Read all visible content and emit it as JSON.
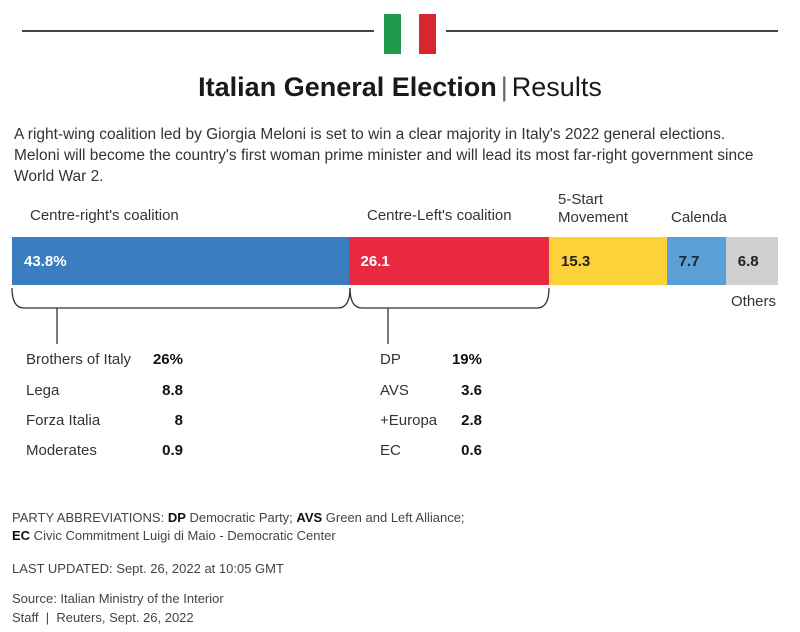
{
  "header": {
    "title_bold": "Italian General Election",
    "title_sep": "|",
    "title_light": "Results"
  },
  "description": "A right-wing coalition led by Giorgia Meloni is set to win a clear majority in Italy's 2022 general elections. Meloni will become the country's first woman prime minister and will lead its most far-right government since World War 2.",
  "colors": {
    "flag_green": "#1f9a4c",
    "flag_white": "#ffffff",
    "flag_red": "#d7262e"
  },
  "chart_data": {
    "type": "bar",
    "orientation": "horizontal-stacked",
    "title": "Italian General Election | Results",
    "unit": "%",
    "series": [
      {
        "name": "Centre-right's coalition",
        "value": 43.8,
        "label": "43.8%",
        "color": "#3a7ebf",
        "text_color": "#ffffff"
      },
      {
        "name": "Centre-Left's coalition",
        "value": 26.1,
        "label": "26.1",
        "color": "#e8293f",
        "text_color": "#ffffff"
      },
      {
        "name": "5-Start Movement",
        "value": 15.3,
        "label": "15.3",
        "color": "#fdd13a",
        "text_color": "#222222"
      },
      {
        "name": "Calenda",
        "value": 7.7,
        "label": "7.7",
        "color": "#5a9fd6",
        "text_color": "#222222"
      },
      {
        "name": "Others",
        "value": 6.8,
        "label": "6.8",
        "color": "#cfcfcf",
        "text_color": "#222222"
      }
    ],
    "breakdown": {
      "centre_right": [
        {
          "party": "Brothers of Italy",
          "value": "26%"
        },
        {
          "party": "Lega",
          "value": "8.8"
        },
        {
          "party": "Forza Italia",
          "value": "8"
        },
        {
          "party": "Moderates",
          "value": "0.9"
        }
      ],
      "centre_left": [
        {
          "party": "DP",
          "value": "19%"
        },
        {
          "party": "AVS",
          "value": "3.6"
        },
        {
          "party": "+Europa",
          "value": "2.8"
        },
        {
          "party": "EC",
          "value": "0.6"
        }
      ]
    }
  },
  "labels": {
    "centre_right": "Centre-right's coalition",
    "centre_left": "Centre-Left's coalition",
    "five_star_line1": "5-Start",
    "five_star_line2": "Movement",
    "calenda": "Calenda",
    "others": "Others"
  },
  "footer": {
    "abbr_prefix": "PARTY ABBREVIATIONS: ",
    "abbr_dp_key": "DP",
    "abbr_dp_val": " Democratic Party; ",
    "abbr_avs_key": "AVS",
    "abbr_avs_val": " Green and Left Alliance;",
    "abbr_ec_key": "EC",
    "abbr_ec_val": " Civic Commitment Luigi di Maio - Democratic Center",
    "last_updated": "LAST UPDATED: Sept. 26, 2022 at 10:05 GMT",
    "source": "Source: Italian Ministry of the Interior",
    "credit": "Staff  |  Reuters, Sept. 26, 2022"
  }
}
